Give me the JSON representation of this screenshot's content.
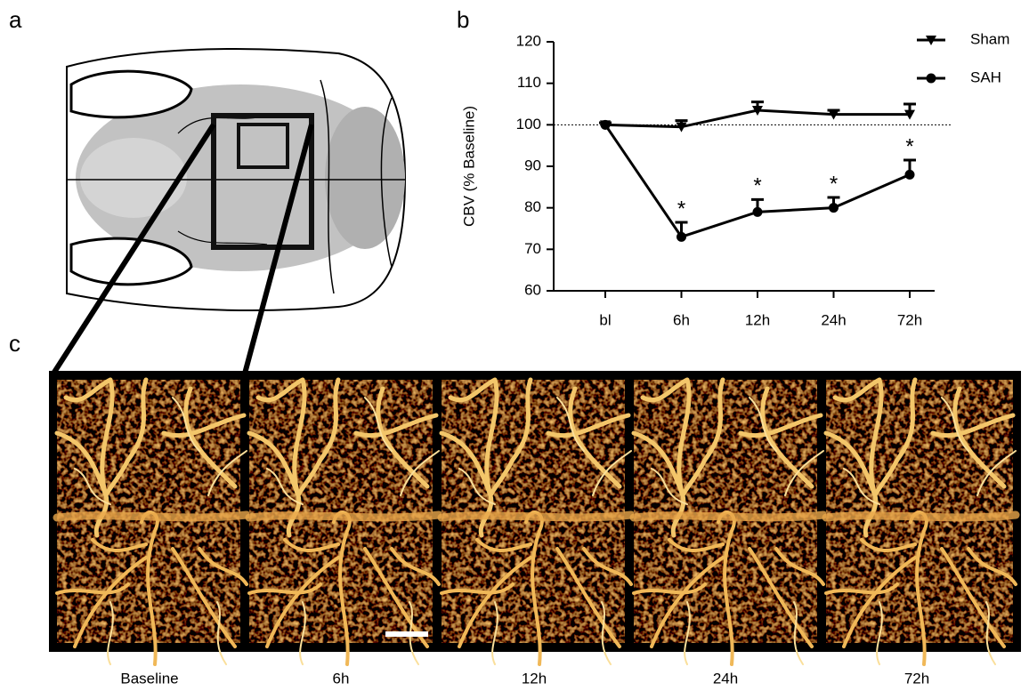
{
  "panel_labels": [
    "a",
    "b",
    "c"
  ],
  "image_captions": [
    "Baseline",
    "6h",
    "12h",
    "24h",
    "72h"
  ],
  "chart_data": {
    "type": "line",
    "y_label": "CBV (% Baseline)",
    "categories": [
      "bl",
      "6h",
      "12h",
      "24h",
      "72h"
    ],
    "series": [
      {
        "name": "Sham",
        "color": "#000000",
        "marker": "triangle-down",
        "values": [
          100,
          99.5,
          103.5,
          102.5,
          102.5
        ],
        "errors": [
          0.5,
          1.5,
          2,
          1,
          2.5
        ]
      },
      {
        "name": "SAH",
        "color": "#000000",
        "marker": "circle",
        "values": [
          100,
          73,
          79,
          80,
          88
        ],
        "errors": [
          0.5,
          3.5,
          3,
          2.5,
          3.5
        ]
      }
    ],
    "significance_labels": [
      null,
      "*",
      "*",
      "*",
      "*"
    ],
    "reference_line": 100,
    "ylim": [
      60,
      120
    ],
    "yticks": [
      60,
      70,
      80,
      90,
      100,
      110,
      120
    ],
    "grid": false,
    "legend": "top-right"
  }
}
